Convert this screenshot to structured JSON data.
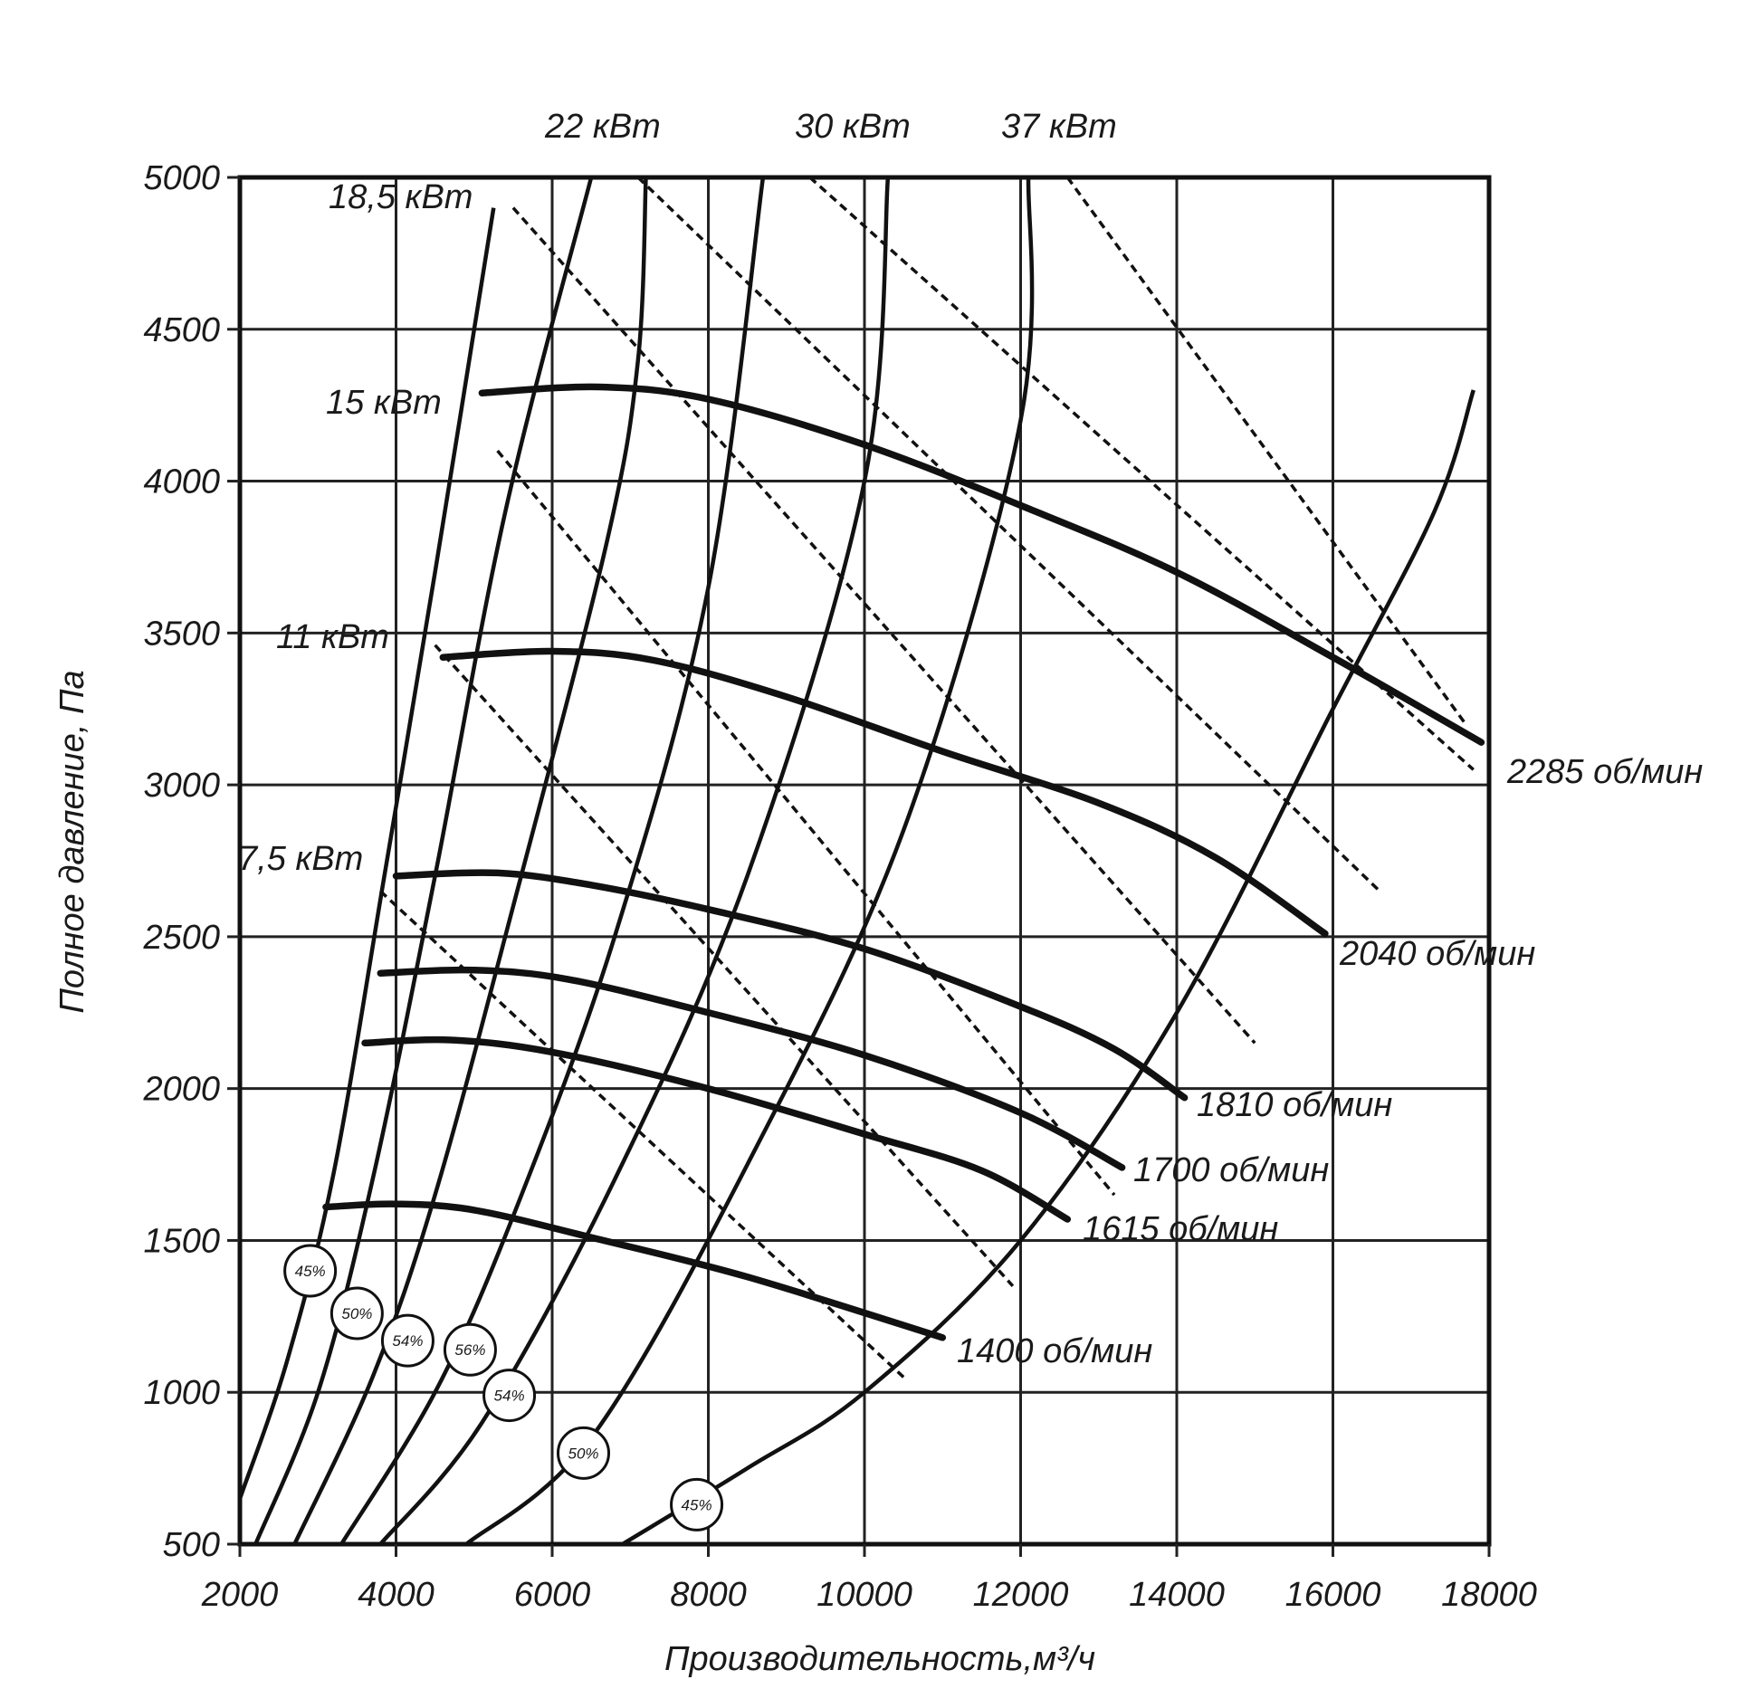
{
  "chart_data": {
    "type": "line",
    "xlabel": "Производительность,м³/ч",
    "ylabel": "Полное давление, Па",
    "xlim": [
      2000,
      18000
    ],
    "ylim": [
      500,
      5000
    ],
    "x_ticks": [
      "2000",
      "4000",
      "6000",
      "8000",
      "10000",
      "12000",
      "14000",
      "16000",
      "18000"
    ],
    "y_ticks": [
      "500",
      "1000",
      "1500",
      "2000",
      "2500",
      "3000",
      "3500",
      "4000",
      "4500",
      "5000"
    ],
    "grid": true,
    "speed_curves": [
      {
        "name": "2285 об/мин",
        "label": "2285 об/мин",
        "points": [
          [
            5100,
            4290
          ],
          [
            6600,
            4310
          ],
          [
            8000,
            4270
          ],
          [
            10000,
            4120
          ],
          [
            12000,
            3920
          ],
          [
            14000,
            3700
          ],
          [
            16000,
            3420
          ],
          [
            17900,
            3140
          ]
        ]
      },
      {
        "name": "2040 об/мин",
        "label": "2040 об/мин",
        "points": [
          [
            4600,
            3420
          ],
          [
            6000,
            3440
          ],
          [
            7300,
            3410
          ],
          [
            9000,
            3290
          ],
          [
            11000,
            3110
          ],
          [
            13000,
            2940
          ],
          [
            14500,
            2760
          ],
          [
            15900,
            2510
          ]
        ]
      },
      {
        "name": "1810 об/мин",
        "label": "1810 об/мин",
        "points": [
          [
            4000,
            2700
          ],
          [
            5300,
            2710
          ],
          [
            6500,
            2670
          ],
          [
            8000,
            2590
          ],
          [
            10000,
            2460
          ],
          [
            12000,
            2270
          ],
          [
            13200,
            2130
          ],
          [
            14100,
            1970
          ]
        ]
      },
      {
        "name": "1700 об/мин",
        "label": "1700 об/мин",
        "points": [
          [
            3800,
            2380
          ],
          [
            5000,
            2390
          ],
          [
            6200,
            2360
          ],
          [
            8000,
            2250
          ],
          [
            10000,
            2110
          ],
          [
            12000,
            1920
          ],
          [
            13300,
            1740
          ]
        ]
      },
      {
        "name": "1615 об/мин",
        "label": "1615 об/мин",
        "points": [
          [
            3600,
            2150
          ],
          [
            4700,
            2160
          ],
          [
            6000,
            2120
          ],
          [
            8000,
            2000
          ],
          [
            10000,
            1850
          ],
          [
            11500,
            1730
          ],
          [
            12600,
            1570
          ]
        ]
      },
      {
        "name": "1400 об/мин",
        "label": "1400 об/мин",
        "points": [
          [
            3100,
            1610
          ],
          [
            4000,
            1620
          ],
          [
            5000,
            1600
          ],
          [
            6500,
            1510
          ],
          [
            8500,
            1380
          ],
          [
            11000,
            1180
          ]
        ]
      }
    ],
    "efficiency_curves": [
      {
        "label": "45%",
        "marker": [
          2900,
          1400
        ],
        "points": [
          [
            2000,
            650
          ],
          [
            2600,
            1100
          ],
          [
            3200,
            1720
          ],
          [
            3850,
            2700
          ],
          [
            4500,
            3700
          ],
          [
            5250,
            4900
          ]
        ]
      },
      {
        "label": "50%",
        "marker": [
          3500,
          1260
        ],
        "points": [
          [
            2200,
            500
          ],
          [
            3000,
            1000
          ],
          [
            3700,
            1700
          ],
          [
            4500,
            2700
          ],
          [
            5400,
            3900
          ],
          [
            6500,
            5000
          ]
        ]
      },
      {
        "label": "54%",
        "marker": [
          4150,
          1170
        ],
        "points": [
          [
            2700,
            500
          ],
          [
            3700,
            1050
          ],
          [
            4500,
            1650
          ],
          [
            5500,
            2600
          ],
          [
            6700,
            3800
          ],
          [
            7100,
            4400
          ],
          [
            7200,
            5000
          ]
        ]
      },
      {
        "label": "56%",
        "marker": [
          4950,
          1140
        ],
        "points": [
          [
            3300,
            500
          ],
          [
            4500,
            1000
          ],
          [
            5500,
            1580
          ],
          [
            6800,
            2500
          ],
          [
            8000,
            3650
          ],
          [
            8700,
            5000
          ]
        ]
      },
      {
        "label": "54%",
        "marker": [
          5450,
          990
        ],
        "points": [
          [
            3800,
            500
          ],
          [
            5100,
            900
          ],
          [
            6800,
            1700
          ],
          [
            8500,
            2700
          ],
          [
            10000,
            4000
          ],
          [
            10300,
            5000
          ]
        ]
      },
      {
        "label": "50%",
        "marker": [
          6400,
          800
        ],
        "points": [
          [
            4900,
            500
          ],
          [
            6500,
            850
          ],
          [
            8500,
            1750
          ],
          [
            10500,
            2850
          ],
          [
            12000,
            4200
          ],
          [
            12100,
            5000
          ]
        ]
      },
      {
        "label": "45%",
        "marker": [
          7850,
          630
        ],
        "points": [
          [
            6900,
            500
          ],
          [
            8500,
            750
          ],
          [
            10000,
            1000
          ],
          [
            12000,
            1500
          ],
          [
            14000,
            2250
          ],
          [
            16000,
            3250
          ],
          [
            17300,
            3900
          ],
          [
            17800,
            4300
          ]
        ]
      }
    ],
    "power_lines": [
      {
        "label": "7,5 кВт",
        "points": [
          [
            3800,
            2650
          ],
          [
            10500,
            1050
          ]
        ]
      },
      {
        "label": "11 кВт",
        "points": [
          [
            4500,
            3460
          ],
          [
            11900,
            1350
          ]
        ]
      },
      {
        "label": "15 кВт",
        "points": [
          [
            5300,
            4100
          ],
          [
            13200,
            1650
          ]
        ]
      },
      {
        "label": "18,5 кВт",
        "points": [
          [
            5500,
            4900
          ],
          [
            15000,
            2150
          ]
        ]
      },
      {
        "label": "22 кВт",
        "points": [
          [
            7100,
            5000
          ],
          [
            16600,
            2650
          ]
        ]
      },
      {
        "label": "30 кВт",
        "points": [
          [
            9300,
            5000
          ],
          [
            17800,
            3050
          ]
        ]
      },
      {
        "label": "37 кВт",
        "points": [
          [
            12600,
            5000
          ],
          [
            17700,
            3200
          ]
        ]
      }
    ],
    "colors": {
      "line": "#111111",
      "grid": "#222222",
      "marker_fill": "#ffffff"
    }
  }
}
